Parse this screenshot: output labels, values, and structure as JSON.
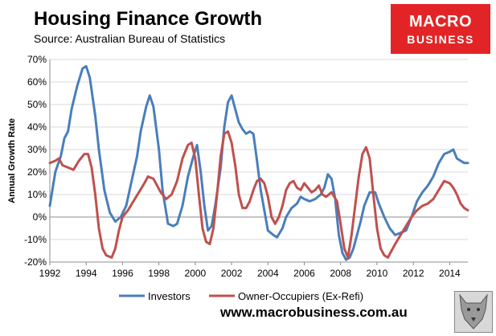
{
  "header": {
    "title": "Housing Finance Growth",
    "subtitle": "Source: Australian Bureau of Statistics"
  },
  "logo": {
    "line1": "MACRO",
    "line2": "BUSINESS"
  },
  "footer": {
    "url": "www.macrobusiness.com.au"
  },
  "chart_data": {
    "type": "line",
    "title": "Housing Finance Growth",
    "xlabel": "",
    "ylabel": "Annual Growth Rate",
    "xlim": [
      1992,
      2015
    ],
    "ylim": [
      -20,
      70
    ],
    "yticks": [
      -20,
      -10,
      0,
      10,
      20,
      30,
      40,
      50,
      60,
      70
    ],
    "ytick_labels": [
      "-20%",
      "-10%",
      "0%",
      "10%",
      "20%",
      "30%",
      "40%",
      "50%",
      "60%",
      "70%"
    ],
    "xticks": [
      1992,
      1994,
      1996,
      1998,
      2000,
      2002,
      2004,
      2006,
      2008,
      2010,
      2012,
      2014
    ],
    "xtick_labels": [
      "1992",
      "1994",
      "1996",
      "1998",
      "2000",
      "2002",
      "2004",
      "2006",
      "2008",
      "2010",
      "2012",
      "2014"
    ],
    "legend_position": "bottom",
    "grid": true,
    "series": [
      {
        "name": "Investors",
        "color": "#4a7ebb",
        "points": [
          [
            1992.0,
            5
          ],
          [
            1992.3,
            20
          ],
          [
            1992.6,
            27
          ],
          [
            1992.8,
            35
          ],
          [
            1993.0,
            38
          ],
          [
            1993.2,
            48
          ],
          [
            1993.5,
            58
          ],
          [
            1993.8,
            66
          ],
          [
            1994.0,
            67
          ],
          [
            1994.2,
            62
          ],
          [
            1994.5,
            45
          ],
          [
            1994.7,
            30
          ],
          [
            1995.0,
            12
          ],
          [
            1995.3,
            2
          ],
          [
            1995.6,
            -2
          ],
          [
            1995.9,
            0
          ],
          [
            1996.2,
            5
          ],
          [
            1996.5,
            16
          ],
          [
            1996.8,
            27
          ],
          [
            1997.0,
            38
          ],
          [
            1997.3,
            49
          ],
          [
            1997.5,
            54
          ],
          [
            1997.7,
            49
          ],
          [
            1998.0,
            30
          ],
          [
            1998.2,
            12
          ],
          [
            1998.5,
            -3
          ],
          [
            1998.8,
            -4
          ],
          [
            1999.0,
            -3
          ],
          [
            1999.3,
            5
          ],
          [
            1999.6,
            18
          ],
          [
            1999.9,
            27
          ],
          [
            2000.1,
            32
          ],
          [
            2000.3,
            20
          ],
          [
            2000.5,
            5
          ],
          [
            2000.7,
            -6
          ],
          [
            2000.9,
            -4
          ],
          [
            2001.1,
            5
          ],
          [
            2001.4,
            22
          ],
          [
            2001.6,
            40
          ],
          [
            2001.8,
            51
          ],
          [
            2002.0,
            54
          ],
          [
            2002.2,
            48
          ],
          [
            2002.4,
            42
          ],
          [
            2002.6,
            39
          ],
          [
            2002.8,
            37
          ],
          [
            2003.0,
            38
          ],
          [
            2003.2,
            37
          ],
          [
            2003.4,
            25
          ],
          [
            2003.6,
            12
          ],
          [
            2003.8,
            3
          ],
          [
            2004.0,
            -6
          ],
          [
            2004.3,
            -8
          ],
          [
            2004.5,
            -9
          ],
          [
            2004.8,
            -5
          ],
          [
            2005.0,
            0
          ],
          [
            2005.3,
            4
          ],
          [
            2005.6,
            6
          ],
          [
            2005.8,
            9
          ],
          [
            2006.0,
            8
          ],
          [
            2006.3,
            7
          ],
          [
            2006.6,
            8
          ],
          [
            2006.9,
            10
          ],
          [
            2007.1,
            13
          ],
          [
            2007.3,
            19
          ],
          [
            2007.5,
            17
          ],
          [
            2007.7,
            8
          ],
          [
            2007.9,
            -8
          ],
          [
            2008.1,
            -16
          ],
          [
            2008.3,
            -19
          ],
          [
            2008.5,
            -18
          ],
          [
            2008.7,
            -14
          ],
          [
            2008.9,
            -8
          ],
          [
            2009.1,
            -2
          ],
          [
            2009.3,
            5
          ],
          [
            2009.6,
            11
          ],
          [
            2009.9,
            11
          ],
          [
            2010.1,
            6
          ],
          [
            2010.4,
            0
          ],
          [
            2010.7,
            -5
          ],
          [
            2011.0,
            -8
          ],
          [
            2011.3,
            -7
          ],
          [
            2011.6,
            -6
          ],
          [
            2011.9,
            0
          ],
          [
            2012.2,
            7
          ],
          [
            2012.5,
            11
          ],
          [
            2012.8,
            14
          ],
          [
            2013.1,
            18
          ],
          [
            2013.4,
            24
          ],
          [
            2013.7,
            28
          ],
          [
            2014.0,
            29
          ],
          [
            2014.2,
            30
          ],
          [
            2014.4,
            26
          ],
          [
            2014.6,
            25
          ],
          [
            2014.8,
            24
          ],
          [
            2015.0,
            24
          ]
        ]
      },
      {
        "name": "Owner-Occupiers (Ex-Refi)",
        "color": "#c0504d",
        "points": [
          [
            1992.0,
            24
          ],
          [
            1992.3,
            25
          ],
          [
            1992.5,
            26
          ],
          [
            1992.7,
            23
          ],
          [
            1993.0,
            22
          ],
          [
            1993.3,
            21
          ],
          [
            1993.6,
            25
          ],
          [
            1993.9,
            28
          ],
          [
            1994.1,
            28
          ],
          [
            1994.3,
            22
          ],
          [
            1994.5,
            10
          ],
          [
            1994.7,
            -5
          ],
          [
            1994.9,
            -14
          ],
          [
            1995.1,
            -17
          ],
          [
            1995.4,
            -18
          ],
          [
            1995.6,
            -14
          ],
          [
            1995.8,
            -6
          ],
          [
            1996.0,
            0
          ],
          [
            1996.3,
            3
          ],
          [
            1996.6,
            7
          ],
          [
            1996.9,
            11
          ],
          [
            1997.2,
            15
          ],
          [
            1997.4,
            18
          ],
          [
            1997.7,
            17
          ],
          [
            1997.9,
            14
          ],
          [
            1998.1,
            11
          ],
          [
            1998.4,
            8
          ],
          [
            1998.7,
            10
          ],
          [
            1999.0,
            16
          ],
          [
            1999.3,
            26
          ],
          [
            1999.6,
            32
          ],
          [
            1999.8,
            33
          ],
          [
            2000.0,
            26
          ],
          [
            2000.2,
            10
          ],
          [
            2000.4,
            -5
          ],
          [
            2000.6,
            -11
          ],
          [
            2000.8,
            -12
          ],
          [
            2001.0,
            -5
          ],
          [
            2001.2,
            10
          ],
          [
            2001.4,
            27
          ],
          [
            2001.6,
            37
          ],
          [
            2001.8,
            38
          ],
          [
            2002.0,
            33
          ],
          [
            2002.2,
            23
          ],
          [
            2002.4,
            10
          ],
          [
            2002.6,
            4
          ],
          [
            2002.8,
            4
          ],
          [
            2003.0,
            7
          ],
          [
            2003.2,
            12
          ],
          [
            2003.4,
            16
          ],
          [
            2003.6,
            17
          ],
          [
            2003.8,
            15
          ],
          [
            2004.0,
            9
          ],
          [
            2004.2,
            0
          ],
          [
            2004.4,
            -3
          ],
          [
            2004.6,
            0
          ],
          [
            2004.8,
            5
          ],
          [
            2005.0,
            12
          ],
          [
            2005.2,
            15
          ],
          [
            2005.4,
            16
          ],
          [
            2005.6,
            13
          ],
          [
            2005.8,
            12
          ],
          [
            2006.0,
            15
          ],
          [
            2006.2,
            13
          ],
          [
            2006.4,
            11
          ],
          [
            2006.6,
            12
          ],
          [
            2006.8,
            14
          ],
          [
            2007.0,
            10
          ],
          [
            2007.2,
            9
          ],
          [
            2007.5,
            11
          ],
          [
            2007.8,
            7
          ],
          [
            2008.0,
            -3
          ],
          [
            2008.2,
            -14
          ],
          [
            2008.4,
            -18
          ],
          [
            2008.6,
            -8
          ],
          [
            2008.8,
            5
          ],
          [
            2009.0,
            18
          ],
          [
            2009.2,
            28
          ],
          [
            2009.4,
            31
          ],
          [
            2009.6,
            26
          ],
          [
            2009.8,
            10
          ],
          [
            2010.0,
            -5
          ],
          [
            2010.2,
            -14
          ],
          [
            2010.4,
            -17
          ],
          [
            2010.6,
            -18
          ],
          [
            2010.8,
            -15
          ],
          [
            2011.0,
            -12
          ],
          [
            2011.3,
            -8
          ],
          [
            2011.6,
            -4
          ],
          [
            2011.9,
            0
          ],
          [
            2012.2,
            3
          ],
          [
            2012.5,
            5
          ],
          [
            2012.8,
            6
          ],
          [
            2013.1,
            8
          ],
          [
            2013.4,
            12
          ],
          [
            2013.7,
            16
          ],
          [
            2014.0,
            15
          ],
          [
            2014.2,
            13
          ],
          [
            2014.4,
            10
          ],
          [
            2014.6,
            6
          ],
          [
            2014.8,
            4
          ],
          [
            2015.0,
            3
          ]
        ]
      }
    ]
  }
}
